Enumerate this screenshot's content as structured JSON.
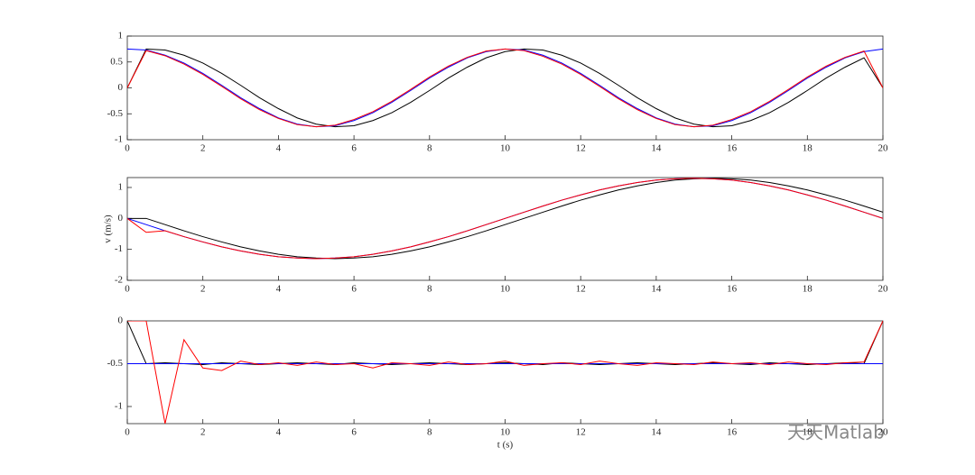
{
  "chart_data": [
    {
      "type": "line",
      "x": [
        0,
        0.5,
        1,
        1.5,
        2,
        2.5,
        3,
        3.5,
        4,
        4.5,
        5,
        5.5,
        6,
        6.5,
        7,
        7.5,
        8,
        8.5,
        9,
        9.5,
        10,
        10.5,
        11,
        11.5,
        12,
        12.5,
        13,
        13.5,
        14,
        14.5,
        15,
        15.5,
        16,
        16.5,
        17,
        17.5,
        18,
        18.5,
        19,
        19.5,
        20
      ],
      "series": [
        {
          "color": "#000000",
          "values": [
            0,
            0.75,
            0.73,
            0.63,
            0.48,
            0.28,
            0.05,
            -0.19,
            -0.4,
            -0.58,
            -0.7,
            -0.75,
            -0.73,
            -0.63,
            -0.48,
            -0.28,
            -0.05,
            0.19,
            0.4,
            0.58,
            0.7,
            0.75,
            0.73,
            0.63,
            0.48,
            0.28,
            0.05,
            -0.19,
            -0.4,
            -0.58,
            -0.7,
            -0.75,
            -0.73,
            -0.63,
            -0.48,
            -0.28,
            -0.05,
            0.19,
            0.4,
            0.58,
            0
          ]
        },
        {
          "color": "#0000ff",
          "values": [
            0.75,
            0.73,
            0.63,
            0.48,
            0.28,
            0.05,
            -0.19,
            -0.4,
            -0.58,
            -0.7,
            -0.75,
            -0.73,
            -0.63,
            -0.48,
            -0.28,
            -0.05,
            0.19,
            0.4,
            0.58,
            0.7,
            0.75,
            0.73,
            0.63,
            0.48,
            0.28,
            0.05,
            -0.19,
            -0.4,
            -0.58,
            -0.7,
            -0.75,
            -0.73,
            -0.63,
            -0.48,
            -0.28,
            -0.05,
            0.19,
            0.4,
            0.58,
            0.7,
            0.75
          ]
        },
        {
          "color": "#ff0000",
          "values": [
            0,
            0.72,
            0.62,
            0.46,
            0.26,
            0.03,
            -0.21,
            -0.42,
            -0.59,
            -0.71,
            -0.75,
            -0.72,
            -0.61,
            -0.46,
            -0.26,
            -0.03,
            0.21,
            0.42,
            0.59,
            0.71,
            0.75,
            0.72,
            0.61,
            0.46,
            0.26,
            0.03,
            -0.21,
            -0.42,
            -0.59,
            -0.71,
            -0.75,
            -0.72,
            -0.61,
            -0.46,
            -0.26,
            -0.03,
            0.21,
            0.42,
            0.59,
            0.71,
            0
          ]
        }
      ],
      "xlim": [
        0,
        20
      ],
      "xticks": [
        0,
        2,
        4,
        6,
        8,
        10,
        12,
        14,
        16,
        18,
        20
      ],
      "ylim": [
        -1,
        1
      ],
      "yticks": [
        -1,
        -0.5,
        0,
        0.5,
        1
      ]
    },
    {
      "type": "line",
      "ylabel": "v (m/s)",
      "x": [
        0,
        0.5,
        1,
        1.5,
        2,
        2.5,
        3,
        3.5,
        4,
        4.5,
        5,
        5.5,
        6,
        6.5,
        7,
        7.5,
        8,
        8.5,
        9,
        9.5,
        10,
        10.5,
        11,
        11.5,
        12,
        12.5,
        13,
        13.5,
        14,
        14.5,
        15,
        15.5,
        16,
        16.5,
        17,
        17.5,
        18,
        18.5,
        19,
        19.5,
        20
      ],
      "series": [
        {
          "color": "#000000",
          "values": [
            0,
            0,
            -0.2,
            -0.4,
            -0.59,
            -0.76,
            -0.92,
            -1.05,
            -1.16,
            -1.24,
            -1.28,
            -1.3,
            -1.28,
            -1.24,
            -1.16,
            -1.05,
            -0.92,
            -0.76,
            -0.59,
            -0.4,
            -0.2,
            0,
            0.2,
            0.4,
            0.59,
            0.76,
            0.92,
            1.05,
            1.16,
            1.24,
            1.28,
            1.3,
            1.28,
            1.24,
            1.16,
            1.05,
            0.92,
            0.76,
            0.59,
            0.4,
            0.2
          ]
        },
        {
          "color": "#0000ff",
          "values": [
            0,
            -0.2,
            -0.4,
            -0.59,
            -0.76,
            -0.92,
            -1.05,
            -1.16,
            -1.24,
            -1.28,
            -1.3,
            -1.28,
            -1.24,
            -1.16,
            -1.05,
            -0.92,
            -0.76,
            -0.59,
            -0.4,
            -0.2,
            0,
            0.2,
            0.4,
            0.59,
            0.76,
            0.92,
            1.05,
            1.16,
            1.24,
            1.28,
            1.3,
            1.28,
            1.24,
            1.16,
            1.05,
            0.92,
            0.76,
            0.59,
            0.4,
            0.2,
            0
          ]
        },
        {
          "color": "#ff0000",
          "values": [
            0,
            -0.45,
            -0.4,
            -0.59,
            -0.76,
            -0.92,
            -1.05,
            -1.16,
            -1.24,
            -1.28,
            -1.3,
            -1.28,
            -1.24,
            -1.16,
            -1.05,
            -0.92,
            -0.76,
            -0.59,
            -0.4,
            -0.2,
            0,
            0.2,
            0.4,
            0.59,
            0.76,
            0.92,
            1.05,
            1.16,
            1.24,
            1.28,
            1.3,
            1.28,
            1.24,
            1.16,
            1.05,
            0.92,
            0.76,
            0.59,
            0.4,
            0.2,
            0
          ]
        }
      ],
      "xlim": [
        0,
        20
      ],
      "xticks": [
        0,
        2,
        4,
        6,
        8,
        10,
        12,
        14,
        16,
        18,
        20
      ],
      "ylim": [
        -2,
        1.32
      ],
      "yticks": [
        -2,
        -1,
        0,
        1
      ]
    },
    {
      "type": "line",
      "xlabel": "t (s)",
      "x": [
        0,
        0.5,
        1,
        1.5,
        2,
        2.5,
        3,
        3.5,
        4,
        4.5,
        5,
        5.5,
        6,
        6.5,
        7,
        7.5,
        8,
        8.5,
        9,
        9.5,
        10,
        10.5,
        11,
        11.5,
        12,
        12.5,
        13,
        13.5,
        14,
        14.5,
        15,
        15.5,
        16,
        16.5,
        17,
        17.5,
        18,
        18.5,
        19,
        19.5,
        20
      ],
      "series": [
        {
          "color": "#000000",
          "values": [
            0,
            -0.5,
            -0.49,
            -0.5,
            -0.51,
            -0.49,
            -0.5,
            -0.51,
            -0.5,
            -0.49,
            -0.5,
            -0.51,
            -0.49,
            -0.5,
            -0.51,
            -0.5,
            -0.49,
            -0.5,
            -0.51,
            -0.5,
            -0.49,
            -0.5,
            -0.51,
            -0.49,
            -0.5,
            -0.51,
            -0.5,
            -0.49,
            -0.5,
            -0.51,
            -0.5,
            -0.49,
            -0.5,
            -0.51,
            -0.49,
            -0.5,
            -0.51,
            -0.5,
            -0.49,
            -0.5,
            0
          ]
        },
        {
          "color": "#0000ff",
          "values": [
            -0.5,
            -0.5,
            -0.5,
            -0.5,
            -0.5,
            -0.5,
            -0.5,
            -0.5,
            -0.5,
            -0.5,
            -0.5,
            -0.5,
            -0.5,
            -0.5,
            -0.5,
            -0.5,
            -0.5,
            -0.5,
            -0.5,
            -0.5,
            -0.5,
            -0.5,
            -0.5,
            -0.5,
            -0.5,
            -0.5,
            -0.5,
            -0.5,
            -0.5,
            -0.5,
            -0.5,
            -0.5,
            -0.5,
            -0.5,
            -0.5,
            -0.5,
            -0.5,
            -0.5,
            -0.5,
            -0.5,
            -0.5
          ]
        },
        {
          "color": "#ff0000",
          "values": [
            0,
            0,
            -1.2,
            -0.22,
            -0.55,
            -0.58,
            -0.47,
            -0.51,
            -0.49,
            -0.52,
            -0.48,
            -0.51,
            -0.5,
            -0.55,
            -0.49,
            -0.5,
            -0.52,
            -0.48,
            -0.51,
            -0.5,
            -0.47,
            -0.52,
            -0.5,
            -0.49,
            -0.51,
            -0.47,
            -0.5,
            -0.52,
            -0.49,
            -0.5,
            -0.51,
            -0.48,
            -0.5,
            -0.49,
            -0.51,
            -0.48,
            -0.5,
            -0.51,
            -0.49,
            -0.48,
            0
          ]
        }
      ],
      "xlim": [
        0,
        20
      ],
      "xticks": [
        0,
        2,
        4,
        6,
        8,
        10,
        12,
        14,
        16,
        18,
        20
      ],
      "ylim": [
        -1.2,
        0
      ],
      "yticks": [
        -1,
        -0.5,
        0
      ]
    }
  ],
  "watermark": "天天Matlab"
}
